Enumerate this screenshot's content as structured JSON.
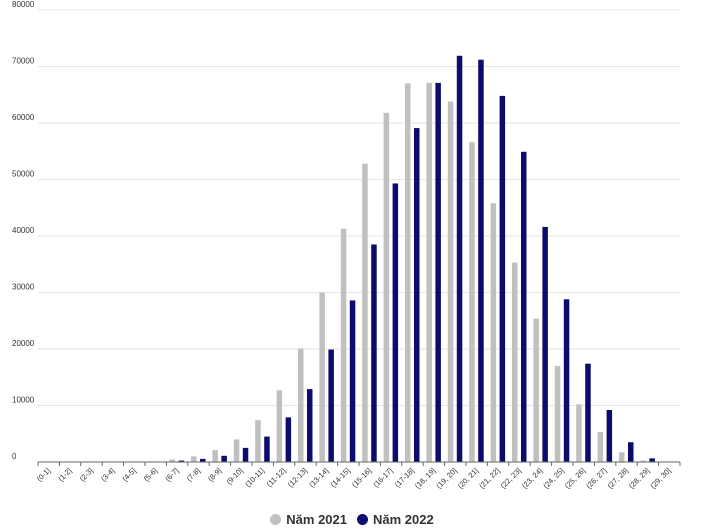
{
  "colors": {
    "series_2021": "#c0c0c0",
    "series_2022": "#0c0c6e",
    "grid": "#e6e6e6",
    "axis": "#666666",
    "text": "#333333"
  },
  "chart_data": {
    "type": "bar",
    "title": "",
    "xlabel": "",
    "ylabel": "",
    "ylim": [
      0,
      80000
    ],
    "yticks": [
      0,
      10000,
      20000,
      30000,
      40000,
      50000,
      60000,
      70000,
      80000
    ],
    "grid": true,
    "legend_position": "bottom-center",
    "categories": [
      "(0-1]",
      "(1-2]",
      "(2-3]",
      "(3-4]",
      "(4-5]",
      "(5-6]",
      "(6-7]",
      "(7-8]",
      "(8-9]",
      "(9-10]",
      "(10-11]",
      "(11-12]",
      "(12-13]",
      "(13-14]",
      "(14-15]",
      "(15-16]",
      "(16-17]",
      "(17-18]",
      "(18, 19]",
      "(19, 20]",
      "(20, 21]",
      "(21, 22]",
      "(22, 23]",
      "(23, 24]",
      "(24, 25]",
      "(25, 26]",
      "(26, 27]",
      "(27, 28]",
      "(28, 29]",
      "(29, 30]"
    ],
    "series": [
      {
        "name": "Năm 2021",
        "values": [
          0,
          0,
          0,
          0,
          0,
          100,
          450,
          1000,
          2100,
          4000,
          7400,
          12700,
          20100,
          30000,
          41300,
          52800,
          61800,
          67000,
          67100,
          63800,
          56600,
          45800,
          35300,
          25400,
          17000,
          10200,
          5300,
          1700,
          250,
          0
        ]
      },
      {
        "name": "Năm 2022",
        "values": [
          0,
          0,
          0,
          0,
          0,
          50,
          250,
          550,
          1100,
          2500,
          4500,
          7900,
          12900,
          19900,
          28600,
          38500,
          49300,
          59100,
          67100,
          71900,
          71200,
          64800,
          54900,
          41600,
          28800,
          17400,
          9200,
          3500,
          650,
          80
        ]
      }
    ]
  }
}
